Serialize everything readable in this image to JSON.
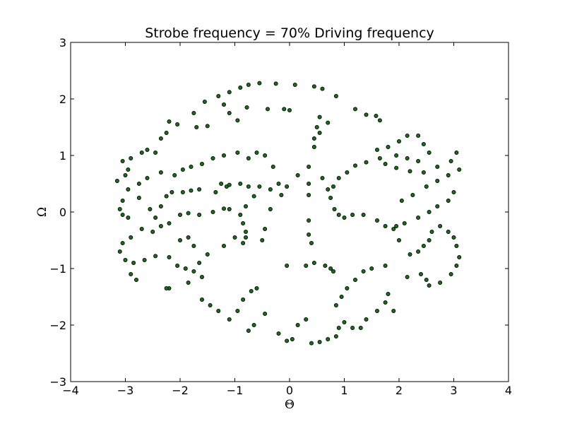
{
  "chart_data": {
    "type": "scatter",
    "title": "Strobe frequency = 70% Driving frequency",
    "xlabel": "Θ",
    "ylabel": "Ω",
    "xlim": [
      -4,
      4
    ],
    "ylim": [
      -3,
      3
    ],
    "xticks": [
      -4,
      -3,
      -2,
      -1,
      0,
      1,
      2,
      3,
      4
    ],
    "yticks": [
      -3,
      -2,
      -1,
      0,
      1,
      2,
      3
    ],
    "xtick_labels": [
      "−4",
      "−3",
      "−2",
      "−1",
      "0",
      "1",
      "2",
      "3",
      "4"
    ],
    "ytick_labels": [
      "−3",
      "−2",
      "−1",
      "0",
      "1",
      "2",
      "3"
    ],
    "grid": false,
    "marker_color": "#1a6b1a",
    "marker_edge_color": "#000000",
    "series": [
      {
        "points": [
          [
            -1.3,
            2.05
          ],
          [
            -1.1,
            2.12
          ],
          [
            -0.9,
            2.2
          ],
          [
            -0.75,
            2.25
          ],
          [
            -0.55,
            2.28
          ],
          [
            -0.25,
            2.27
          ],
          [
            0.1,
            2.25
          ],
          [
            0.45,
            2.22
          ],
          [
            0.6,
            2.18
          ],
          [
            0.85,
            2.05
          ],
          [
            -1.2,
            1.9
          ],
          [
            -1.1,
            1.75
          ],
          [
            -0.95,
            1.62
          ],
          [
            -0.78,
            1.85
          ],
          [
            -0.4,
            1.82
          ],
          [
            -0.1,
            1.82
          ],
          [
            0.0,
            1.8
          ],
          [
            0.55,
            1.68
          ],
          [
            0.7,
            1.58
          ],
          [
            1.2,
            1.82
          ],
          [
            1.4,
            1.72
          ],
          [
            1.65,
            1.62
          ],
          [
            1.58,
            1.7
          ],
          [
            -1.55,
            1.95
          ],
          [
            -1.75,
            1.75
          ],
          [
            -1.5,
            1.52
          ],
          [
            -1.7,
            1.5
          ],
          [
            -2.05,
            1.55
          ],
          [
            -2.2,
            1.6
          ],
          [
            -2.25,
            1.4
          ],
          [
            -2.35,
            1.3
          ],
          [
            -2.45,
            1.05
          ],
          [
            -2.7,
            1.05
          ],
          [
            -2.6,
            1.1
          ],
          [
            -2.9,
            0.95
          ],
          [
            -3.05,
            0.9
          ],
          [
            -2.95,
            0.75
          ],
          [
            -3.0,
            0.65
          ],
          [
            -3.15,
            0.55
          ],
          [
            -3.05,
            0.2
          ],
          [
            -3.1,
            0.05
          ],
          [
            -3.05,
            -0.05
          ],
          [
            -2.95,
            -0.1
          ],
          [
            -2.75,
            0.25
          ],
          [
            -2.55,
            0.05
          ],
          [
            -2.45,
            -0.1
          ],
          [
            -2.35,
            0.1
          ],
          [
            -2.25,
            0.28
          ],
          [
            -2.15,
            0.35
          ],
          [
            -1.95,
            0.35
          ],
          [
            -1.8,
            0.38
          ],
          [
            -1.65,
            0.4
          ],
          [
            -1.35,
            0.35
          ],
          [
            -1.25,
            0.5
          ],
          [
            -1.15,
            0.45
          ],
          [
            -1.1,
            0.48
          ],
          [
            -0.9,
            0.5
          ],
          [
            -0.75,
            0.45
          ],
          [
            -0.55,
            0.45
          ],
          [
            -0.35,
            0.4
          ],
          [
            -0.65,
            0.28
          ],
          [
            -0.8,
            0.1
          ],
          [
            -0.9,
            -0.05
          ],
          [
            -0.85,
            -0.2
          ],
          [
            -0.8,
            -0.35
          ],
          [
            -0.8,
            -0.45
          ],
          [
            -0.85,
            -0.55
          ],
          [
            -1.1,
            0.05
          ],
          [
            -1.2,
            0.06
          ],
          [
            -1.4,
            0.0
          ],
          [
            -1.65,
            -0.05
          ],
          [
            -1.85,
            -0.02
          ],
          [
            -2.0,
            -0.05
          ],
          [
            -2.2,
            -0.2
          ],
          [
            -2.35,
            -0.25
          ],
          [
            -2.5,
            -0.35
          ],
          [
            -2.7,
            -0.3
          ],
          [
            -2.9,
            -0.45
          ],
          [
            -3.05,
            -0.55
          ],
          [
            -3.1,
            -0.7
          ],
          [
            -3.0,
            -0.85
          ],
          [
            -2.85,
            -0.9
          ],
          [
            -2.65,
            -0.85
          ],
          [
            -2.45,
            -0.78
          ],
          [
            -2.2,
            -0.8
          ],
          [
            -2.05,
            -0.95
          ],
          [
            -1.9,
            -1.0
          ],
          [
            -1.75,
            -1.05
          ],
          [
            -1.6,
            -1.15
          ],
          [
            -1.65,
            -0.9
          ],
          [
            -1.5,
            -0.75
          ],
          [
            -1.2,
            -0.6
          ],
          [
            -1.0,
            -0.45
          ],
          [
            -2.9,
            -1.1
          ],
          [
            -2.8,
            -1.2
          ],
          [
            -2.2,
            -1.35
          ],
          [
            -2.25,
            -1.35
          ],
          [
            -1.85,
            -1.25
          ],
          [
            -1.6,
            -1.55
          ],
          [
            -1.45,
            -1.65
          ],
          [
            -1.3,
            -1.75
          ],
          [
            -1.1,
            -1.9
          ],
          [
            -0.95,
            -1.75
          ],
          [
            -0.85,
            -1.55
          ],
          [
            -0.7,
            -1.4
          ],
          [
            -0.6,
            -1.35
          ],
          [
            -0.45,
            -1.8
          ],
          [
            -0.65,
            -2.0
          ],
          [
            -0.75,
            -2.1
          ],
          [
            -0.2,
            -2.15
          ],
          [
            -0.05,
            -2.28
          ],
          [
            0.05,
            -2.25
          ],
          [
            0.15,
            -2.0
          ],
          [
            0.3,
            -1.9
          ],
          [
            0.4,
            -2.32
          ],
          [
            0.55,
            -2.3
          ],
          [
            0.7,
            -2.25
          ],
          [
            0.85,
            -2.2
          ],
          [
            0.9,
            -2.05
          ],
          [
            1.0,
            -1.95
          ],
          [
            1.15,
            -2.05
          ],
          [
            1.3,
            -2.05
          ],
          [
            1.4,
            -1.9
          ],
          [
            1.6,
            -1.75
          ],
          [
            1.75,
            -1.6
          ],
          [
            1.8,
            -1.45
          ],
          [
            1.9,
            -1.75
          ],
          [
            0.85,
            -1.65
          ],
          [
            0.95,
            -1.5
          ],
          [
            1.05,
            -1.35
          ],
          [
            1.2,
            -1.2
          ],
          [
            1.35,
            -1.05
          ],
          [
            1.5,
            -1.0
          ],
          [
            1.75,
            -0.95
          ],
          [
            2.15,
            -1.15
          ],
          [
            2.4,
            -1.1
          ],
          [
            2.5,
            -1.2
          ],
          [
            2.55,
            -1.3
          ],
          [
            2.75,
            -1.25
          ],
          [
            2.95,
            -1.1
          ],
          [
            3.05,
            -0.95
          ],
          [
            3.1,
            -0.8
          ],
          [
            3.05,
            -0.6
          ],
          [
            3.0,
            -0.45
          ],
          [
            2.9,
            -0.35
          ],
          [
            2.75,
            -0.25
          ],
          [
            2.6,
            -0.35
          ],
          [
            2.55,
            -0.5
          ],
          [
            2.45,
            -0.6
          ],
          [
            2.35,
            -0.7
          ],
          [
            2.2,
            -0.75
          ],
          [
            2.0,
            -0.5
          ],
          [
            1.9,
            -0.3
          ],
          [
            1.75,
            -0.25
          ],
          [
            1.6,
            -0.15
          ],
          [
            1.35,
            -0.05
          ],
          [
            1.15,
            -0.05
          ],
          [
            1.0,
            -0.1
          ],
          [
            0.9,
            -0.05
          ],
          [
            0.82,
            0.05
          ],
          [
            0.75,
            0.25
          ],
          [
            0.8,
            0.45
          ],
          [
            0.9,
            0.6
          ],
          [
            1.05,
            0.7
          ],
          [
            1.2,
            0.82
          ],
          [
            1.4,
            0.88
          ],
          [
            1.65,
            0.95
          ],
          [
            1.75,
            0.85
          ],
          [
            1.95,
            0.78
          ],
          [
            2.2,
            0.72
          ],
          [
            2.45,
            0.7
          ],
          [
            2.7,
            0.8
          ],
          [
            2.95,
            0.9
          ],
          [
            3.05,
            1.05
          ],
          [
            3.0,
            0.35
          ],
          [
            2.9,
            0.2
          ],
          [
            2.7,
            0.1
          ],
          [
            2.55,
            0.0
          ],
          [
            2.35,
            -0.1
          ],
          [
            2.1,
            -0.2
          ],
          [
            1.95,
            -0.25
          ],
          [
            2.05,
            0.2
          ],
          [
            2.25,
            0.3
          ],
          [
            2.5,
            0.45
          ],
          [
            2.7,
            0.55
          ],
          [
            2.9,
            0.65
          ],
          [
            3.1,
            0.75
          ],
          [
            1.6,
            1.1
          ],
          [
            1.8,
            1.15
          ],
          [
            2.0,
            1.25
          ],
          [
            2.15,
            1.35
          ],
          [
            2.35,
            1.35
          ],
          [
            2.45,
            1.2
          ],
          [
            2.55,
            1.05
          ],
          [
            2.35,
            0.9
          ],
          [
            2.15,
            0.95
          ],
          [
            1.95,
            1.0
          ],
          [
            0.55,
            1.4
          ],
          [
            0.5,
            1.5
          ],
          [
            0.45,
            1.3
          ],
          [
            0.45,
            1.15
          ],
          [
            0.6,
            0.6
          ],
          [
            0.7,
            0.4
          ],
          [
            0.35,
            0.5
          ],
          [
            0.35,
            0.3
          ],
          [
            0.35,
            -0.15
          ],
          [
            0.35,
            -0.4
          ],
          [
            0.4,
            -0.55
          ],
          [
            0.45,
            -0.9
          ],
          [
            0.3,
            -0.95
          ],
          [
            0.65,
            -0.95
          ],
          [
            0.75,
            -1.0
          ],
          [
            0.8,
            -1.05
          ],
          [
            0.35,
            0.8
          ],
          [
            0.15,
            0.65
          ],
          [
            -0.15,
            0.3
          ],
          [
            -0.35,
            0.05
          ],
          [
            -0.45,
            -0.3
          ],
          [
            -0.5,
            -0.5
          ],
          [
            -0.3,
            0.8
          ],
          [
            -0.45,
            1.0
          ],
          [
            -0.6,
            1.05
          ],
          [
            -0.75,
            0.95
          ],
          [
            -0.95,
            1.05
          ],
          [
            -1.2,
            1.0
          ],
          [
            -1.4,
            0.95
          ],
          [
            -1.6,
            0.85
          ],
          [
            -1.8,
            0.8
          ],
          [
            -1.95,
            0.75
          ],
          [
            -2.1,
            0.65
          ],
          [
            -2.35,
            0.7
          ],
          [
            -2.6,
            0.6
          ],
          [
            -2.75,
            0.5
          ],
          [
            -2.95,
            0.4
          ],
          [
            -1.85,
            -0.45
          ],
          [
            -2.0,
            -0.5
          ],
          [
            -1.75,
            -0.6
          ],
          [
            -0.2,
            0.5
          ],
          [
            -0.05,
            0.45
          ],
          [
            -0.05,
            -0.95
          ]
        ]
      }
    ]
  }
}
